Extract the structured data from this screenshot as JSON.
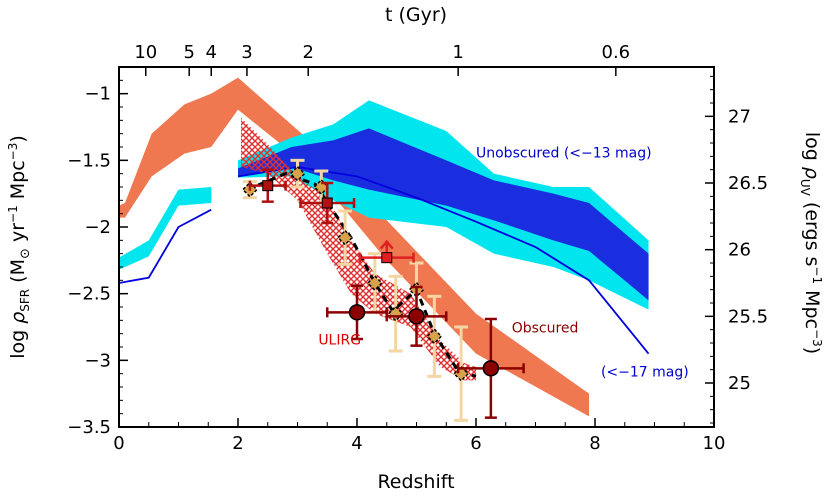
{
  "chart_data": {
    "type": "area",
    "xlabel": "Redshift",
    "ylabel": "log ρ_SFR (M⊙ yr⁻¹ Mpc⁻³)",
    "ylabel_parts": {
      "log": "log ",
      "rho": "ρ",
      "sub": "SFR",
      "units_pre": " (M",
      "sun": "⊙",
      "units_yr": " yr",
      "exp_yr": "−1",
      "units_mpc": " Mpc",
      "exp_mpc": "−3",
      "close": ")"
    },
    "top_label": "t (Gyr)",
    "right_label": "log ρ_UV (ergs s⁻¹ Mpc⁻³)",
    "right_label_parts": {
      "log": "log ",
      "rho": "ρ",
      "sub": "UV",
      "units_pre": " (ergs s",
      "exp_s": "−1",
      "units_mpc": " Mpc",
      "exp_mpc": "−3",
      "close": ")"
    },
    "xlim": [
      0,
      10
    ],
    "ylim": [
      -3.5,
      -0.8
    ],
    "right_ylim": [
      24.67,
      27.37
    ],
    "grid": false,
    "x_ticks": [
      0,
      2,
      4,
      6,
      8,
      10
    ],
    "y_ticks": [
      -3.5,
      -3,
      -2.5,
      -2,
      -1.5,
      -1
    ],
    "y_tick_labels": [
      "−3.5",
      "−3",
      "−2.5",
      "−2",
      "−1.5",
      "−1"
    ],
    "right_ticks": [
      25,
      25.5,
      26,
      26.5,
      27
    ],
    "right_tick_labels": [
      "25",
      "25.5",
      "26",
      "26.5",
      "27"
    ],
    "top_ticks": [
      {
        "z": 0.45,
        "label": "10"
      },
      {
        "z": 1.18,
        "label": "5"
      },
      {
        "z": 1.55,
        "label": "4"
      },
      {
        "z": 2.15,
        "label": "3"
      },
      {
        "z": 3.18,
        "label": "2"
      },
      {
        "z": 5.7,
        "label": "1"
      },
      {
        "z": 8.35,
        "label": "0.6"
      }
    ],
    "series": [
      {
        "kind": "band",
        "color": "#f07850",
        "upper": [
          [
            0,
            -1.84
          ],
          [
            0.1,
            -1.82
          ],
          [
            0.55,
            -1.3
          ],
          [
            1.1,
            -1.08
          ],
          [
            1.55,
            -1.0
          ],
          [
            2.0,
            -0.88
          ],
          [
            3.2,
            -1.35
          ],
          [
            4.5,
            -1.95
          ],
          [
            6.0,
            -2.65
          ],
          [
            7.9,
            -3.25
          ]
        ],
        "lower": [
          [
            0,
            -1.93
          ],
          [
            0.1,
            -1.93
          ],
          [
            0.55,
            -1.62
          ],
          [
            1.1,
            -1.45
          ],
          [
            1.55,
            -1.4
          ],
          [
            2.0,
            -1.12
          ],
          [
            3.2,
            -1.55
          ],
          [
            4.5,
            -2.25
          ],
          [
            6.0,
            -2.95
          ],
          [
            7.9,
            -3.42
          ]
        ]
      },
      {
        "kind": "band",
        "color": "#00e5ee",
        "upper": [
          [
            2.0,
            -1.5
          ],
          [
            2.9,
            -1.33
          ],
          [
            3.6,
            -1.23
          ],
          [
            4.2,
            -1.05
          ],
          [
            5.5,
            -1.28
          ],
          [
            6.3,
            -1.6
          ],
          [
            7.3,
            -1.7
          ],
          [
            7.9,
            -1.7
          ],
          [
            8.9,
            -2.1
          ]
        ],
        "lower": [
          [
            2.0,
            -1.63
          ],
          [
            2.9,
            -1.62
          ],
          [
            3.6,
            -1.8
          ],
          [
            4.2,
            -1.93
          ],
          [
            5.5,
            -2.0
          ],
          [
            6.3,
            -2.2
          ],
          [
            7.3,
            -2.3
          ],
          [
            7.9,
            -2.4
          ],
          [
            8.9,
            -2.62
          ]
        ]
      },
      {
        "kind": "band",
        "color": "#1a2ee0",
        "upper": [
          [
            2.0,
            -1.56
          ],
          [
            2.9,
            -1.4
          ],
          [
            3.6,
            -1.35
          ],
          [
            4.2,
            -1.26
          ],
          [
            5.5,
            -1.5
          ],
          [
            6.3,
            -1.65
          ],
          [
            7.3,
            -1.75
          ],
          [
            7.9,
            -1.82
          ],
          [
            8.9,
            -2.2
          ]
        ],
        "lower": [
          [
            2.0,
            -1.62
          ],
          [
            2.9,
            -1.55
          ],
          [
            3.6,
            -1.65
          ],
          [
            4.2,
            -1.72
          ],
          [
            5.5,
            -1.84
          ],
          [
            6.3,
            -1.95
          ],
          [
            7.3,
            -2.1
          ],
          [
            7.9,
            -2.18
          ],
          [
            8.9,
            -2.55
          ]
        ]
      },
      {
        "kind": "band",
        "color": "#1a2ee0",
        "upper": [
          [
            0,
            -2.25
          ],
          [
            0.5,
            -2.12
          ],
          [
            1.0,
            -1.74
          ],
          [
            1.55,
            -1.72
          ]
        ],
        "lower": [
          [
            0,
            -2.3
          ],
          [
            0.5,
            -2.2
          ],
          [
            1.0,
            -1.82
          ],
          [
            1.55,
            -1.8
          ]
        ]
      },
      {
        "kind": "band",
        "color": "#00e5ee",
        "upper": [
          [
            0,
            -2.23
          ],
          [
            0.5,
            -2.1
          ],
          [
            1.0,
            -1.72
          ],
          [
            1.55,
            -1.7
          ]
        ],
        "lower": [
          [
            0,
            -2.32
          ],
          [
            0.5,
            -2.22
          ],
          [
            1.0,
            -1.84
          ],
          [
            1.55,
            -1.82
          ]
        ]
      },
      {
        "kind": "line",
        "color": "#0000dd",
        "points": [
          [
            2.0,
            -1.62
          ],
          [
            3.0,
            -1.55
          ],
          [
            4.0,
            -1.62
          ],
          [
            5.0,
            -1.78
          ],
          [
            6.0,
            -1.96
          ],
          [
            7.0,
            -2.15
          ],
          [
            7.9,
            -2.4
          ],
          [
            8.9,
            -2.95
          ]
        ]
      },
      {
        "kind": "line",
        "color": "#0000dd",
        "points": [
          [
            0,
            -2.42
          ],
          [
            0.5,
            -2.38
          ],
          [
            1.0,
            -2.0
          ],
          [
            1.55,
            -1.87
          ]
        ]
      },
      {
        "kind": "band",
        "color": "#e03030",
        "hatched": true,
        "upper": [
          [
            2.05,
            -1.18
          ],
          [
            2.5,
            -1.38
          ],
          [
            3.0,
            -1.62
          ],
          [
            3.5,
            -1.78
          ],
          [
            3.9,
            -2.1
          ],
          [
            4.3,
            -2.35
          ],
          [
            4.9,
            -2.5
          ],
          [
            5.4,
            -2.85
          ],
          [
            5.8,
            -3.02
          ],
          [
            6.0,
            -3.05
          ]
        ],
        "lower": [
          [
            2.05,
            -1.55
          ],
          [
            2.5,
            -1.6
          ],
          [
            3.0,
            -1.8
          ],
          [
            3.5,
            -2.2
          ],
          [
            3.9,
            -2.5
          ],
          [
            4.3,
            -2.65
          ],
          [
            4.9,
            -2.75
          ],
          [
            5.4,
            -3.05
          ],
          [
            5.8,
            -3.15
          ],
          [
            6.0,
            -3.15
          ]
        ]
      },
      {
        "kind": "line",
        "color": "#000000",
        "dashed": true,
        "width": 3,
        "points": [
          [
            2.15,
            -1.72
          ],
          [
            2.8,
            -1.6
          ],
          [
            3.3,
            -1.68
          ],
          [
            3.9,
            -2.08
          ],
          [
            4.3,
            -2.42
          ],
          [
            4.6,
            -2.63
          ],
          [
            5.0,
            -2.47
          ],
          [
            5.3,
            -2.8
          ],
          [
            5.7,
            -3.08
          ],
          [
            6.0,
            -3.12
          ]
        ]
      }
    ],
    "ulirg_points": [
      {
        "z": 2.5,
        "log_sfr": -1.69,
        "xerr": [
          0.3,
          0.3
        ],
        "yerr": [
          0.12,
          0.12
        ],
        "color": "#b01010",
        "marker": "square"
      },
      {
        "z": 3.5,
        "log_sfr": -1.82,
        "xerr": [
          0.45,
          0.45
        ],
        "yerr": [
          0.15,
          0.15
        ],
        "color": "#b01010",
        "marker": "square"
      },
      {
        "z": 4.5,
        "log_sfr": -2.23,
        "xerr": [
          0.45,
          0.45
        ],
        "yerr": [
          0.12,
          0.0
        ],
        "color": "#e02020",
        "marker": "square",
        "arrow": "up"
      },
      {
        "z": 4.0,
        "log_sfr": -2.64,
        "xerr": [
          0.5,
          0.5
        ],
        "yerr": [
          0.2,
          0.2
        ],
        "color": "#8b0000",
        "marker": "circle"
      },
      {
        "z": 5.0,
        "log_sfr": -2.67,
        "xerr": [
          0.5,
          0.5
        ],
        "yerr": [
          0.22,
          0.22
        ],
        "color": "#8b0000",
        "marker": "circle"
      },
      {
        "z": 6.25,
        "log_sfr": -3.06,
        "xerr": [
          0.55,
          0.55
        ],
        "yerr": [
          0.37,
          0.37
        ],
        "color": "#8b0000",
        "marker": "circle"
      }
    ],
    "uv_points": {
      "color": "#f3d6a3",
      "marker_fill": "#d8a24a",
      "points": [
        {
          "z": 2.2,
          "log_sfr": -1.72,
          "err": 0.06
        },
        {
          "z": 3.0,
          "log_sfr": -1.6,
          "err": 0.1
        },
        {
          "z": 3.4,
          "log_sfr": -1.7,
          "err": 0.12
        },
        {
          "z": 3.8,
          "log_sfr": -2.08,
          "err": 0.2
        },
        {
          "z": 4.3,
          "log_sfr": -2.42,
          "err": 0.22
        },
        {
          "z": 4.65,
          "log_sfr": -2.65,
          "err": 0.28
        },
        {
          "z": 5.0,
          "log_sfr": -2.47,
          "err": 0.2
        },
        {
          "z": 5.3,
          "log_sfr": -2.82,
          "err": 0.3
        },
        {
          "z": 5.75,
          "log_sfr": -3.1,
          "err": 0.35
        }
      ]
    },
    "annotations": [
      {
        "text": "Unobscured (<−13 mag)",
        "color": "#0000cc",
        "x": 6.0,
        "y": -1.48
      },
      {
        "text": "Obscured",
        "color": "#8b0000",
        "x": 6.6,
        "y": -2.79
      },
      {
        "text": "ULIRG",
        "color": "#e00000",
        "x": 3.35,
        "y": -2.88
      },
      {
        "text": "(<−17 mag)",
        "color": "#0000cc",
        "x": 8.1,
        "y": -3.12
      }
    ],
    "colors": {
      "obscured": "#f07850",
      "unobscured_cyan": "#00e5ee",
      "unobscured_blue": "#1a2ee0",
      "line_blue": "#0000dd",
      "ulirg_red": "#e03030",
      "right_label_blue": "#0000cc"
    }
  }
}
